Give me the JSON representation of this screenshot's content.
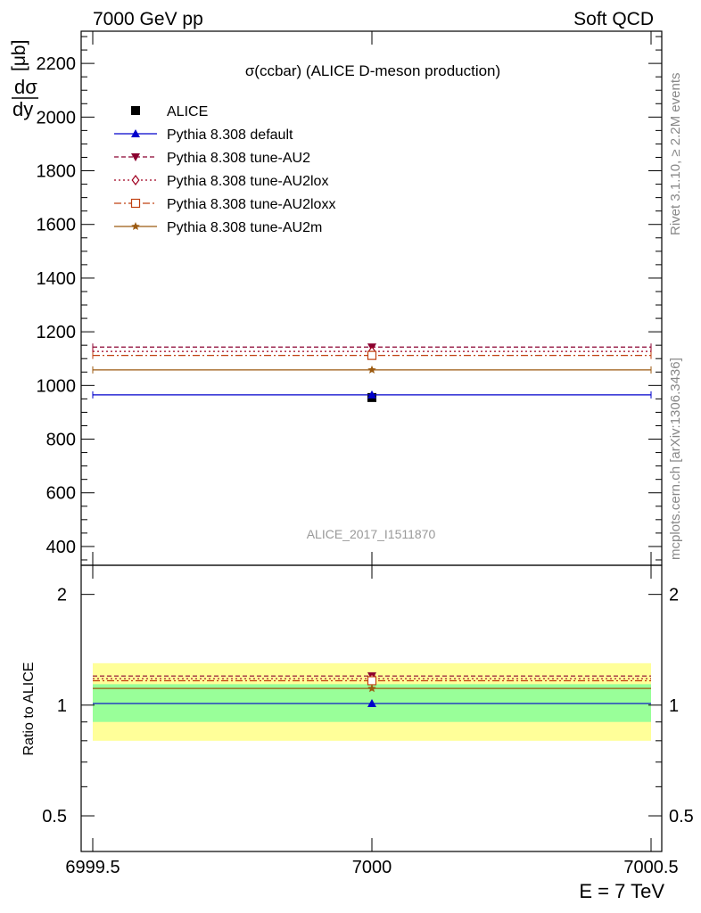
{
  "header": {
    "left": "7000 GeV pp",
    "right": "Soft QCD"
  },
  "side_text": {
    "rivet": "Rivet 3.1.10, ≥ 2.2M events",
    "mcplots": "mcplots.cern.ch [arXiv:1306.3436]"
  },
  "watermark": "ALICE_2017_I1511870",
  "ylabel": {
    "num": "dσ",
    "den": "dy",
    "unit": "[μb]"
  },
  "ratio_ylabel": "Ratio to ALICE",
  "xlabel": "E = 7 TeV",
  "chart_data": [
    {
      "type": "scatter",
      "title": "σ(ccbar) (ALICE D-meson production)",
      "xlim": [
        6999.5,
        7000.5
      ],
      "ylim": [
        330,
        2320
      ],
      "x_ticks": [
        6999.5,
        7000,
        7000.5
      ],
      "x_tick_labels": [
        "6999.5",
        "7000",
        "7000.5"
      ],
      "y_ticks": [
        400,
        600,
        800,
        1000,
        1200,
        1400,
        1600,
        1800,
        2000,
        2200
      ],
      "y_tick_labels": [
        "400",
        "600",
        "800",
        "1000",
        "1200",
        "1400",
        "1600",
        "1800",
        "2000",
        "2200"
      ],
      "legend_position": "top-left",
      "grid": false,
      "series": [
        {
          "name": "ALICE",
          "x": [
            7000
          ],
          "y": [
            955
          ],
          "color": "#000000",
          "marker": "square",
          "style": "data"
        },
        {
          "name": "Pythia 8.308 default",
          "x": [
            7000
          ],
          "y": [
            965
          ],
          "color": "#0000cc",
          "marker": "triangle-up",
          "style": "solid"
        },
        {
          "name": "Pythia 8.308 tune-AU2",
          "x": [
            7000
          ],
          "y": [
            1143
          ],
          "color": "#8b0030",
          "marker": "triangle-down",
          "style": "dashed"
        },
        {
          "name": "Pythia 8.308 tune-AU2lox",
          "x": [
            7000
          ],
          "y": [
            1127
          ],
          "color": "#a00020",
          "marker": "diamond-open",
          "style": "dotted"
        },
        {
          "name": "Pythia 8.308 tune-AU2loxx",
          "x": [
            7000
          ],
          "y": [
            1112
          ],
          "color": "#c04010",
          "marker": "square-open",
          "style": "dashdot"
        },
        {
          "name": "Pythia 8.308 tune-AU2m",
          "x": [
            7000
          ],
          "y": [
            1058
          ],
          "color": "#9c5a10",
          "marker": "star",
          "style": "solid"
        }
      ]
    },
    {
      "type": "scatter",
      "title": "",
      "ylabel": "Ratio to ALICE",
      "xlabel": "E = 7 TeV",
      "xlim": [
        6999.5,
        7000.5
      ],
      "ylim": [
        0.4,
        2.4
      ],
      "log_y": true,
      "y_ticks": [
        0.5,
        1,
        2
      ],
      "y_tick_labels": [
        "0.5",
        "1",
        "2"
      ],
      "bands": [
        {
          "name": "outer",
          "low": 0.8,
          "high": 1.3,
          "color": "#ffff99"
        },
        {
          "name": "inner",
          "low": 0.9,
          "high": 1.14,
          "color": "#99ff99"
        }
      ],
      "series": [
        {
          "name": "Pythia 8.308 default",
          "x": [
            7000
          ],
          "y": [
            1.01
          ],
          "color": "#0000cc",
          "marker": "triangle-up",
          "style": "solid"
        },
        {
          "name": "Pythia 8.308 tune-AU2",
          "x": [
            7000
          ],
          "y": [
            1.2
          ],
          "color": "#8b0030",
          "marker": "triangle-down",
          "style": "dashed"
        },
        {
          "name": "Pythia 8.308 tune-AU2lox",
          "x": [
            7000
          ],
          "y": [
            1.18
          ],
          "color": "#a00020",
          "marker": "diamond-open",
          "style": "dotted"
        },
        {
          "name": "Pythia 8.308 tune-AU2loxx",
          "x": [
            7000
          ],
          "y": [
            1.165
          ],
          "color": "#c04010",
          "marker": "square-open",
          "style": "dashdot"
        },
        {
          "name": "Pythia 8.308 tune-AU2m",
          "x": [
            7000
          ],
          "y": [
            1.11
          ],
          "color": "#9c5a10",
          "marker": "star",
          "style": "solid"
        }
      ]
    }
  ]
}
